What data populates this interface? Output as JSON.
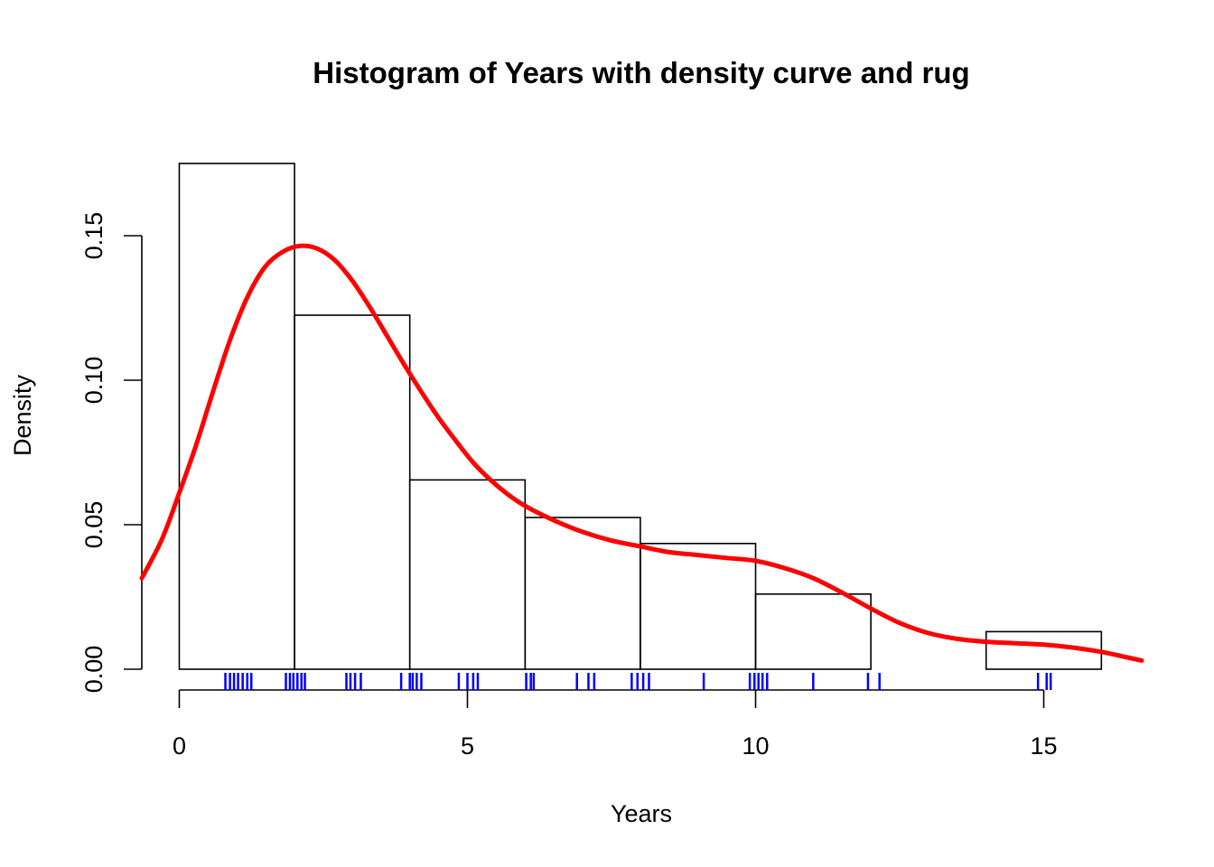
{
  "chart_data": {
    "type": "histogram",
    "title": "Histogram of Years with density curve and rug",
    "xlabel": "Years",
    "ylabel": "Density",
    "xlim": [
      -0.65,
      16.7
    ],
    "ylim": [
      -0.0007,
      0.1775
    ],
    "x_ticks": [
      0,
      5,
      10,
      15
    ],
    "y_ticks": [
      0.0,
      0.05,
      0.1,
      0.15
    ],
    "x_tick_labels": [
      "0",
      "5",
      "10",
      "15"
    ],
    "y_tick_labels": [
      "0.00",
      "0.05",
      "0.10",
      "0.15"
    ],
    "bins": [
      {
        "x0": 0,
        "x1": 2,
        "density": 0.175
      },
      {
        "x0": 2,
        "x1": 4,
        "density": 0.1225
      },
      {
        "x0": 4,
        "x1": 6,
        "density": 0.0655
      },
      {
        "x0": 6,
        "x1": 8,
        "density": 0.0525
      },
      {
        "x0": 8,
        "x1": 10,
        "density": 0.0435
      },
      {
        "x0": 10,
        "x1": 12,
        "density": 0.026
      },
      {
        "x0": 12,
        "x1": 14,
        "density": 0.0
      },
      {
        "x0": 14,
        "x1": 16,
        "density": 0.013
      }
    ],
    "density_curve": {
      "color": "#ff0000",
      "x": [
        -0.65,
        -0.3,
        0.0,
        0.3,
        0.6,
        0.9,
        1.2,
        1.5,
        1.8,
        2.1,
        2.4,
        2.7,
        3.0,
        3.3,
        3.6,
        3.9,
        4.2,
        4.5,
        4.8,
        5.1,
        5.4,
        5.7,
        6.0,
        6.5,
        7.0,
        7.5,
        8.0,
        8.5,
        9.0,
        9.5,
        10.0,
        10.5,
        11.0,
        11.5,
        12.0,
        12.5,
        13.0,
        13.5,
        14.0,
        14.5,
        15.0,
        15.5,
        16.0,
        16.35,
        16.7
      ],
      "y": [
        0.0315,
        0.045,
        0.061,
        0.078,
        0.097,
        0.115,
        0.1295,
        0.1395,
        0.1445,
        0.1465,
        0.1455,
        0.1415,
        0.1345,
        0.1255,
        0.1155,
        0.1055,
        0.096,
        0.087,
        0.079,
        0.0715,
        0.0655,
        0.0605,
        0.0565,
        0.0515,
        0.0475,
        0.0445,
        0.0425,
        0.0405,
        0.0395,
        0.0385,
        0.0375,
        0.035,
        0.0315,
        0.0265,
        0.021,
        0.016,
        0.0125,
        0.0105,
        0.0095,
        0.009,
        0.0085,
        0.0075,
        0.006,
        0.0045,
        0.003
      ]
    },
    "rug": {
      "color": "#0000ff",
      "values": [
        0.8,
        0.88,
        0.95,
        1.02,
        1.1,
        1.18,
        1.25,
        1.85,
        1.92,
        1.98,
        2.05,
        2.12,
        2.18,
        2.9,
        2.97,
        3.05,
        3.15,
        3.85,
        4.0,
        4.05,
        4.12,
        4.2,
        4.85,
        5.0,
        5.1,
        5.18,
        6.02,
        6.1,
        6.15,
        6.9,
        7.1,
        7.2,
        7.85,
        7.95,
        8.05,
        8.15,
        9.1,
        9.9,
        9.98,
        10.05,
        10.12,
        10.2,
        11.0,
        11.95,
        12.15,
        14.9,
        15.05,
        15.12
      ]
    }
  }
}
